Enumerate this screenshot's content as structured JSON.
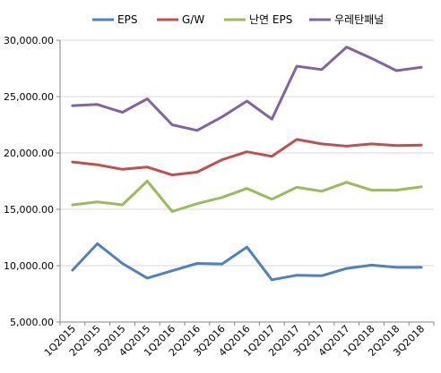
{
  "chart_data": {
    "type": "line",
    "categories": [
      "1Q2015",
      "2Q2015",
      "3Q2015",
      "4Q2015",
      "1Q2016",
      "2Q2016",
      "3Q2016",
      "4Q2016",
      "1Q2017",
      "2Q2017",
      "3Q2017",
      "4Q2017",
      "1Q2018",
      "2Q2018",
      "3Q2018"
    ],
    "series": [
      {
        "name": "EPS",
        "color": "#4f81bd",
        "values": [
          9600,
          11950,
          10200,
          8900,
          9550,
          10200,
          10150,
          11650,
          8750,
          9150,
          9100,
          9750,
          10050,
          9850,
          9850
        ]
      },
      {
        "name": "G/W",
        "color": "#c0504d",
        "values": [
          19200,
          18950,
          18550,
          18750,
          18050,
          18300,
          19400,
          20100,
          19700,
          21200,
          20800,
          20600,
          20800,
          20650,
          20700
        ]
      },
      {
        "name": "난연 EPS",
        "color": "#9bbb59",
        "values": [
          15400,
          15650,
          15400,
          17500,
          14800,
          15500,
          16050,
          16850,
          15900,
          16950,
          16600,
          17400,
          16700,
          16700,
          17000
        ]
      },
      {
        "name": "우레탄패널",
        "color": "#8064a2",
        "values": [
          24200,
          24300,
          23600,
          24800,
          22500,
          22000,
          23200,
          24600,
          23000,
          27700,
          27400,
          29400,
          28400,
          27300,
          27600
        ]
      }
    ],
    "yticks": [
      "5,000.00",
      "10,000.00",
      "15,000.00",
      "20,000.00",
      "25,000.00",
      "30,000.00"
    ],
    "ylim": [
      5000,
      30000
    ],
    "grid": true,
    "legend_position": "top"
  }
}
